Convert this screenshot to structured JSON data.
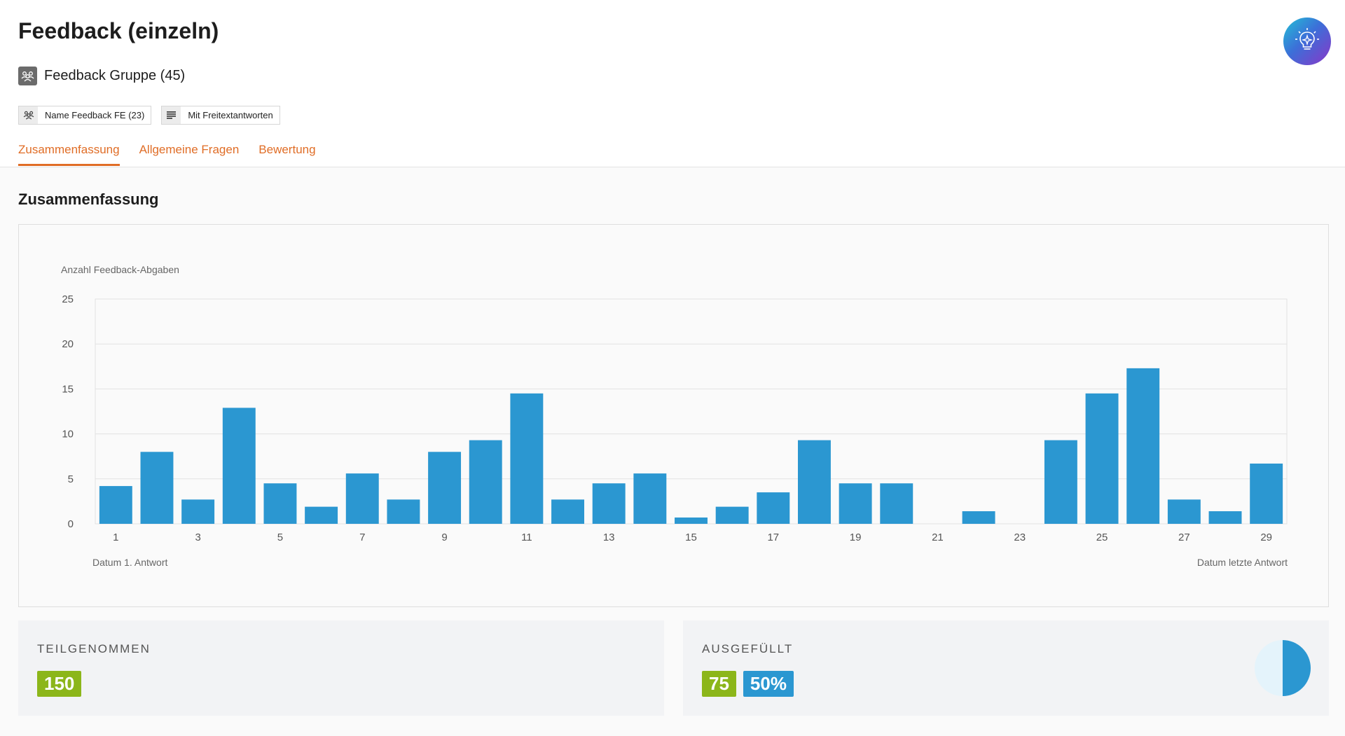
{
  "page": {
    "title": "Feedback (einzeln)",
    "group_title": "Feedback Gruppe (45)",
    "chips": [
      {
        "label": "Name Feedback FE (23)",
        "icon": "people-icon"
      },
      {
        "label": "Mit Freitextantworten",
        "icon": "text-lines-icon"
      }
    ],
    "tabs": [
      {
        "label": "Zusammenfassung",
        "active": true
      },
      {
        "label": "Allgemeine Fragen",
        "active": false
      },
      {
        "label": "Bewertung",
        "active": false
      }
    ],
    "ai_button_icon": "lightbulb-icon"
  },
  "summary": {
    "title": "Zusammenfassung",
    "start_label": "Datum 1. Antwort",
    "end_label": "Datum letzte Antwort"
  },
  "chart_data": {
    "type": "bar",
    "ylabel": "Anzahl Feedback-Abgaben",
    "ylim": [
      0,
      25
    ],
    "yticks": [
      0,
      5,
      10,
      15,
      20,
      25
    ],
    "x": [
      1,
      2,
      3,
      4,
      5,
      6,
      7,
      8,
      9,
      10,
      11,
      12,
      13,
      14,
      15,
      16,
      17,
      18,
      19,
      20,
      21,
      22,
      23,
      24,
      25,
      26,
      27,
      28,
      29
    ],
    "xtick_labels": [
      1,
      3,
      5,
      7,
      9,
      11,
      13,
      15,
      17,
      19,
      21,
      23,
      25,
      27,
      29
    ],
    "values": [
      4.2,
      8,
      2.7,
      12.9,
      4.5,
      1.9,
      5.6,
      2.7,
      8,
      9.3,
      14.5,
      2.7,
      4.5,
      5.6,
      0.7,
      1.9,
      3.5,
      9.3,
      4.5,
      4.5,
      0,
      1.4,
      0,
      9.3,
      14.5,
      17.3,
      2.7,
      1.4,
      6.7
    ],
    "grid": true,
    "color": "#2b97d1"
  },
  "stats": {
    "participated": {
      "label": "TEILGENOMMEN",
      "value": "150"
    },
    "completed": {
      "label": "AUSGEFÜLLT",
      "value": "75",
      "percent": "50%",
      "fraction": 0.5
    }
  },
  "colors": {
    "accent": "#e06d26",
    "bar": "#2b97d1",
    "green_badge": "#8cb61a",
    "blue_badge": "#2b97d1"
  }
}
